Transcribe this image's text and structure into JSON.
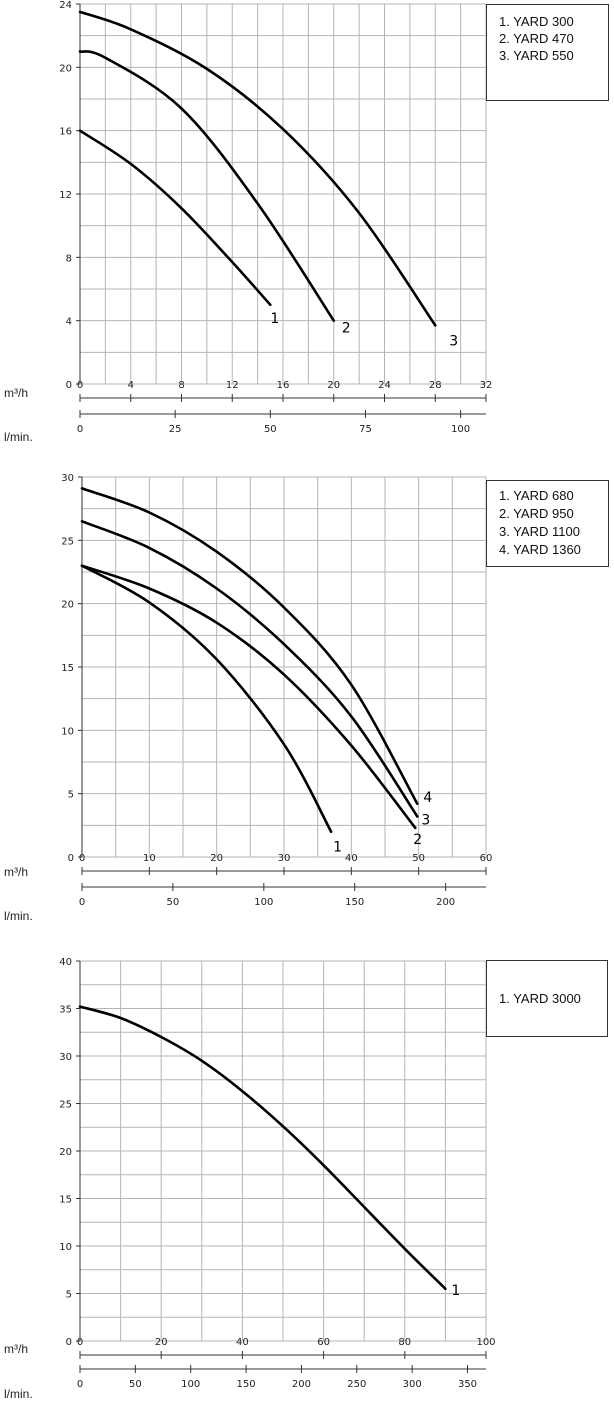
{
  "chart_data": [
    {
      "type": "line",
      "units": {
        "flow_m3h": "m³/h",
        "flow_lmin": "l/min."
      },
      "xlim": [
        0,
        32
      ],
      "ylim": [
        0,
        24
      ],
      "y_ticks": [
        0,
        4,
        8,
        12,
        16,
        20,
        24
      ],
      "x_ticks": [
        0,
        4,
        8,
        12,
        16,
        20,
        24,
        28,
        32
      ],
      "x2_ticks": [
        0,
        25,
        50,
        75,
        100
      ],
      "grid": true,
      "legend": [
        "1. YARD 300",
        "2. YARD 470",
        "3. YARD 550"
      ],
      "series": [
        {
          "name": "1",
          "x": [
            0,
            4,
            8,
            12,
            15
          ],
          "y": [
            16,
            13.9,
            11.1,
            7.7,
            5
          ]
        },
        {
          "name": "2",
          "x": [
            0,
            2,
            8,
            14,
            20
          ],
          "y": [
            21,
            20.6,
            17.4,
            11.4,
            4
          ]
        },
        {
          "name": "3",
          "x": [
            0,
            4,
            10,
            16,
            22,
            28
          ],
          "y": [
            23.5,
            22.4,
            19.9,
            16.1,
            10.8,
            3.7
          ]
        }
      ]
    },
    {
      "type": "line",
      "units": {
        "flow_m3h": "m³/h",
        "flow_lmin": "l/min."
      },
      "xlim": [
        0,
        60
      ],
      "ylim": [
        0,
        30
      ],
      "y_ticks": [
        0,
        5,
        10,
        15,
        20,
        25,
        30
      ],
      "x_ticks": [
        0,
        10,
        20,
        30,
        40,
        50,
        60
      ],
      "x2_ticks": [
        0,
        50,
        100,
        150,
        200
      ],
      "grid": true,
      "legend": [
        "1. YARD 680",
        "2. YARD 950",
        "3. YARD 1100",
        "4. YARD 1360"
      ],
      "series": [
        {
          "name": "1",
          "x": [
            0,
            10,
            20,
            30,
            37
          ],
          "y": [
            23,
            20.1,
            15.6,
            8.9,
            2
          ]
        },
        {
          "name": "2",
          "x": [
            0,
            10,
            20,
            30,
            40,
            49.5
          ],
          "y": [
            23,
            21.2,
            18.5,
            14.4,
            8.8,
            2.3
          ]
        },
        {
          "name": "3",
          "x": [
            0,
            10,
            20,
            30,
            40,
            49.8
          ],
          "y": [
            26.5,
            24.4,
            21.2,
            16.8,
            11.1,
            3.2
          ]
        },
        {
          "name": "4",
          "x": [
            0,
            10,
            20,
            30,
            40,
            49.8
          ],
          "y": [
            29.1,
            27.2,
            24.1,
            19.7,
            13.6,
            4.2
          ]
        }
      ]
    },
    {
      "type": "line",
      "units": {
        "flow_m3h": "m³/h",
        "flow_lmin": "l/min."
      },
      "xlim": [
        0,
        100
      ],
      "ylim": [
        0,
        40
      ],
      "y_ticks": [
        0,
        5,
        10,
        15,
        20,
        25,
        30,
        35,
        40
      ],
      "x_ticks": [
        0,
        20,
        40,
        60,
        80,
        100
      ],
      "x2_ticks": [
        0,
        50,
        100,
        150,
        200,
        250,
        300,
        350
      ],
      "grid": true,
      "legend": [
        "1. YARD 3000"
      ],
      "series": [
        {
          "name": "1",
          "x": [
            0,
            10,
            20,
            30,
            40,
            50,
            60,
            70,
            80,
            90
          ],
          "y": [
            35.2,
            34,
            32,
            29.5,
            26.3,
            22.6,
            18.5,
            14.1,
            9.7,
            5.5
          ]
        }
      ]
    }
  ]
}
